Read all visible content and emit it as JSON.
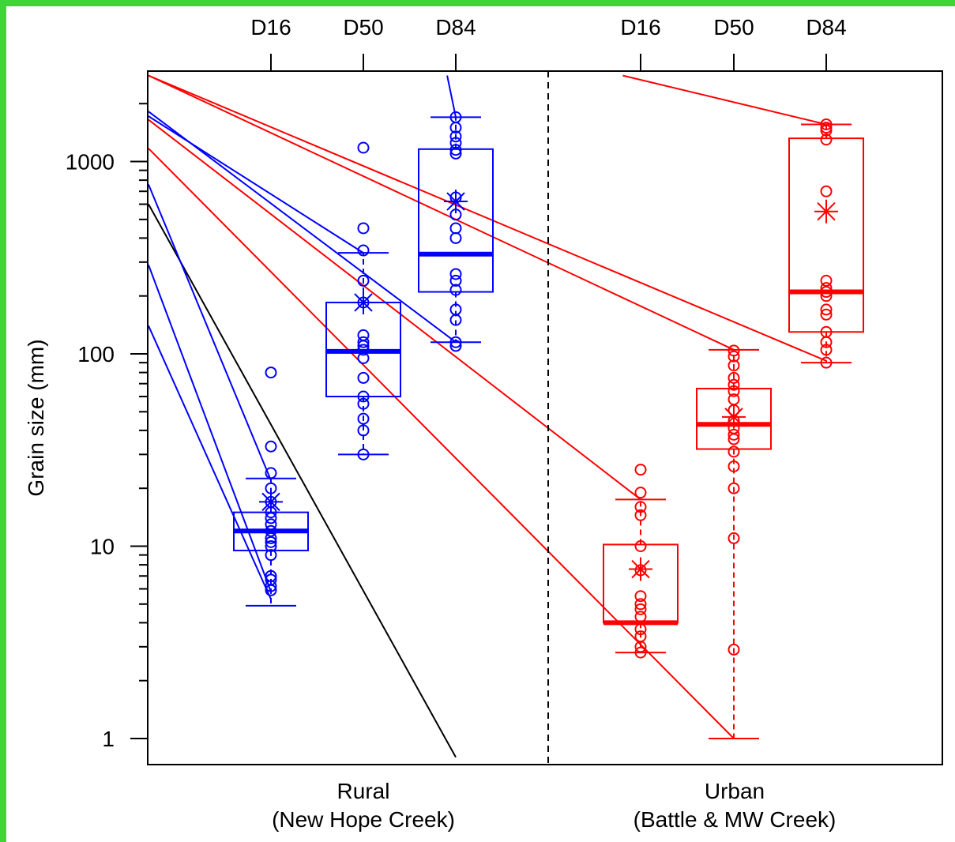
{
  "chart_data": {
    "type": "boxplot",
    "ylabel": "Grain size (mm)",
    "yscale": "log",
    "ylim": [
      0.8,
      2800
    ],
    "yticks": [
      1,
      10,
      100,
      1000
    ],
    "ytick_labels": [
      "1",
      "10",
      "100",
      "1000"
    ],
    "top_tick_labels": [
      "D16",
      "D50",
      "D84",
      "D16",
      "D50",
      "D84"
    ],
    "groups": [
      {
        "label_line1": "Rural",
        "label_line2": "(New Hope Creek)",
        "color": "#0000ff"
      },
      {
        "label_line1": "Urban",
        "label_line2": "(Battle & MW Creek)",
        "color": "#ff0000"
      }
    ],
    "boxes": [
      {
        "group": 0,
        "stat": "D16",
        "whisker_low": 4.9,
        "q1": 9.5,
        "median": 12,
        "q3": 15,
        "whisker_high": 22.5,
        "mean": 17,
        "points": [
          80,
          33,
          24,
          20,
          17,
          15,
          14,
          13,
          12,
          11,
          10.5,
          10,
          9,
          7,
          6.7,
          6.2,
          5.9
        ]
      },
      {
        "group": 0,
        "stat": "D50",
        "whisker_low": 30,
        "q1": 60,
        "median": 103,
        "q3": 185,
        "whisker_high": 335,
        "mean": 185,
        "points": [
          1180,
          450,
          345,
          240,
          185,
          125,
          115,
          110,
          105,
          95,
          75,
          60,
          55,
          46,
          40,
          30
        ]
      },
      {
        "group": 0,
        "stat": "D84",
        "whisker_low": 115,
        "q1": 210,
        "median": 330,
        "q3": 1160,
        "whisker_high": 1700,
        "mean": 620,
        "points": [
          1700,
          1500,
          1350,
          1250,
          1150,
          1100,
          650,
          530,
          450,
          400,
          260,
          240,
          215,
          170,
          150,
          115,
          110
        ]
      },
      {
        "group": 1,
        "stat": "D16",
        "whisker_low": 2.8,
        "q1": 4,
        "median": 4,
        "q3": 10.2,
        "whisker_high": 17.5,
        "mean": 7.6,
        "points": [
          25,
          19,
          16,
          14.5,
          10,
          7.5,
          5.5,
          5,
          4.7,
          4.3,
          3.7,
          3.4,
          3,
          2.8
        ]
      },
      {
        "group": 1,
        "stat": "D50",
        "whisker_low": 1,
        "q1": 32,
        "median": 43,
        "q3": 66,
        "whisker_high": 105,
        "mean": 47,
        "points": [
          104,
          97,
          87,
          75,
          69,
          64,
          58,
          51,
          45,
          41,
          38,
          36,
          31,
          26,
          20,
          11,
          2.9
        ]
      },
      {
        "group": 1,
        "stat": "D84",
        "whisker_low": 90,
        "q1": 130,
        "median": 210,
        "q3": 1320,
        "whisker_high": 1560,
        "mean": 550,
        "points": [
          1560,
          1500,
          1450,
          1300,
          700,
          240,
          220,
          210,
          200,
          170,
          160,
          130,
          115,
          105,
          90
        ]
      }
    ],
    "reference_lines": [
      {
        "color": "#000000",
        "from": [
          0,
          600
        ],
        "to": [
          3,
          0.8
        ]
      },
      {
        "color": "#0000ff",
        "from": [
          0,
          140
        ],
        "to": [
          1,
          5.3
        ]
      },
      {
        "color": "#0000ff",
        "from": [
          0,
          290
        ],
        "to": [
          1,
          5.8
        ]
      },
      {
        "color": "#0000ff",
        "from": [
          0,
          760
        ],
        "to": [
          1,
          22
        ]
      },
      {
        "color": "#0000ff",
        "from": [
          0,
          1820
        ],
        "to": [
          3,
          115
        ]
      },
      {
        "color": "#0000ff",
        "from": [
          0,
          1720
        ],
        "to": [
          2,
          335
        ]
      },
      {
        "color": "#0000ff",
        "from": [
          1.3,
          2800
        ],
        "to": [
          3,
          1700
        ]
      },
      {
        "color": "#ff0000",
        "from": [
          0,
          1170
        ],
        "to": [
          5,
          1
        ]
      },
      {
        "color": "#ff0000",
        "from": [
          0,
          1650
        ],
        "to": [
          4,
          17.5
        ]
      },
      {
        "color": "#ff0000",
        "from": [
          0,
          2800
        ],
        "to": [
          5,
          105
        ]
      },
      {
        "color": "#ff0000",
        "from": [
          0,
          2800
        ],
        "to": [
          6,
          92
        ]
      },
      {
        "color": "#ff0000",
        "from": [
          3.1,
          2800
        ],
        "to": [
          6,
          1560
        ]
      }
    ],
    "divider": "dashed",
    "mean_marker": "asterisk",
    "point_marker": "open-circle"
  }
}
